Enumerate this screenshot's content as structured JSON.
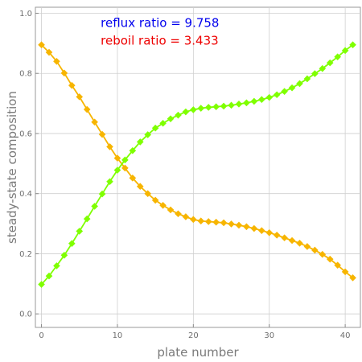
{
  "chart_data": {
    "type": "line",
    "xlabel": "plate number",
    "ylabel": "steady-state composition",
    "xlim": [
      -0.8,
      42
    ],
    "ylim": [
      -0.045,
      1.02
    ],
    "xticks": [
      0,
      10,
      20,
      30,
      40
    ],
    "yticks": [
      0.0,
      0.2,
      0.4,
      0.6,
      0.8,
      1.0
    ],
    "ytick_labels": [
      "0.0",
      "0.2",
      "0.4",
      "0.6",
      "0.8",
      "1.0"
    ],
    "grid": true,
    "annotations": [
      {
        "text": "reflux ratio = 9.758",
        "color": "#0000ee",
        "x": 7.8,
        "y": 0.955
      },
      {
        "text": "reboil ratio = 3.433",
        "color": "#ee0000",
        "x": 7.8,
        "y": 0.896
      }
    ],
    "x": [
      0,
      1,
      2,
      3,
      4,
      5,
      6,
      7,
      8,
      9,
      10,
      11,
      12,
      13,
      14,
      15,
      16,
      17,
      18,
      19,
      20,
      21,
      22,
      23,
      24,
      25,
      26,
      27,
      28,
      29,
      30,
      31,
      32,
      33,
      34,
      35,
      36,
      37,
      38,
      39,
      40,
      41
    ],
    "series": [
      {
        "color": "#f7b500",
        "values": [
          0.895,
          0.87,
          0.84,
          0.801,
          0.76,
          0.722,
          0.68,
          0.638,
          0.597,
          0.556,
          0.518,
          0.485,
          0.452,
          0.424,
          0.4,
          0.378,
          0.361,
          0.346,
          0.333,
          0.323,
          0.314,
          0.309,
          0.307,
          0.305,
          0.303,
          0.299,
          0.295,
          0.29,
          0.284,
          0.277,
          0.27,
          0.262,
          0.253,
          0.244,
          0.235,
          0.224,
          0.212,
          0.198,
          0.182,
          0.162,
          0.14,
          0.12
        ]
      },
      {
        "color": "#7fff00",
        "values": [
          0.098,
          0.126,
          0.16,
          0.195,
          0.234,
          0.275,
          0.316,
          0.358,
          0.399,
          0.44,
          0.478,
          0.512,
          0.543,
          0.572,
          0.596,
          0.618,
          0.634,
          0.649,
          0.661,
          0.672,
          0.679,
          0.684,
          0.687,
          0.689,
          0.691,
          0.694,
          0.698,
          0.702,
          0.707,
          0.713,
          0.72,
          0.729,
          0.74,
          0.752,
          0.766,
          0.782,
          0.799,
          0.816,
          0.835,
          0.855,
          0.876,
          0.895
        ]
      }
    ]
  }
}
